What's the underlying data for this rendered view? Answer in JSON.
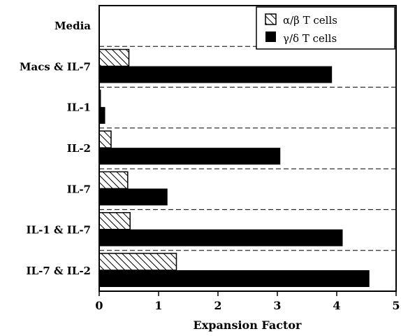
{
  "chart_data": {
    "type": "bar",
    "orientation": "horizontal",
    "categories": [
      "Media",
      "Macs & IL-7",
      "IL-1",
      "IL-2",
      "IL-7",
      "IL-1 & IL-7",
      "IL-7 & IL-2"
    ],
    "series": [
      {
        "name": "α/β T cells",
        "values": [
          0,
          0.5,
          0.02,
          0.2,
          0.48,
          0.52,
          1.3
        ],
        "fill": "hatched"
      },
      {
        "name": "γ/δ T cells",
        "values": [
          0,
          3.92,
          0.1,
          3.05,
          1.15,
          4.1,
          4.55
        ],
        "fill": "solid"
      }
    ],
    "xlabel": "Expansion Factor",
    "ylabel": "",
    "xlim": [
      0,
      5
    ],
    "xticks": [
      "0",
      "1",
      "2",
      "3",
      "4",
      "5"
    ],
    "grid": "horizontal dashed separators",
    "legend": "top-right",
    "colors": {
      "bar": "#000000",
      "background": "#ffffff"
    }
  }
}
